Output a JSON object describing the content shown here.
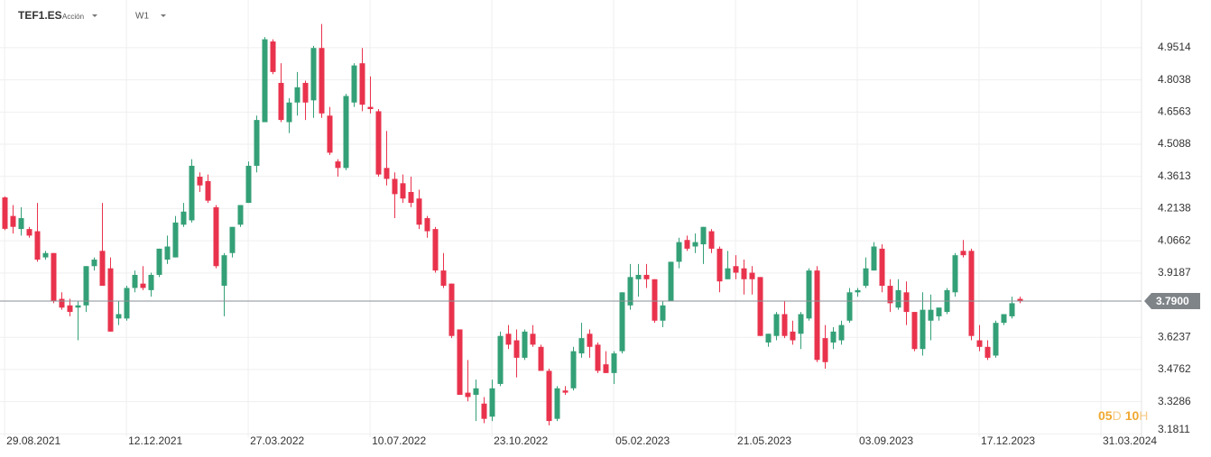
{
  "chart_data": {
    "type": "candlestick",
    "title": "TEF1.ES",
    "subtitle": "Acción",
    "timeframe": "W1",
    "up_color": "#34a077",
    "down_color": "#e9334d",
    "grid": true,
    "x": [
      "2021-08-29",
      "2021-09-05",
      "2021-09-12",
      "2021-09-19",
      "2021-09-26",
      "2021-10-03",
      "2021-10-10",
      "2021-10-17",
      "2021-10-24",
      "2021-10-31",
      "2021-11-07",
      "2021-11-14",
      "2021-11-21",
      "2021-11-28",
      "2021-12-05",
      "2021-12-12",
      "2021-12-19",
      "2021-12-26",
      "2022-01-02",
      "2022-01-09",
      "2022-01-16",
      "2022-01-23",
      "2022-01-30",
      "2022-02-06",
      "2022-02-13",
      "2022-02-20",
      "2022-02-27",
      "2022-03-06",
      "2022-03-13",
      "2022-03-20",
      "2022-03-27",
      "2022-04-03",
      "2022-04-10",
      "2022-04-17",
      "2022-04-24",
      "2022-05-01",
      "2022-05-08",
      "2022-05-15",
      "2022-05-22",
      "2022-05-29",
      "2022-06-05",
      "2022-06-12",
      "2022-06-19",
      "2022-06-26",
      "2022-07-03",
      "2022-07-10",
      "2022-07-17",
      "2022-07-24",
      "2022-07-31",
      "2022-08-07",
      "2022-08-14",
      "2022-08-21",
      "2022-08-28",
      "2022-09-04",
      "2022-09-11",
      "2022-09-18",
      "2022-09-25",
      "2022-10-02",
      "2022-10-09",
      "2022-10-16",
      "2022-10-23",
      "2022-10-30",
      "2022-11-06",
      "2022-11-13",
      "2022-11-20",
      "2022-11-27",
      "2022-12-04",
      "2022-12-11",
      "2022-12-18",
      "2022-12-25",
      "2023-01-01",
      "2023-01-08",
      "2023-01-15",
      "2023-01-22",
      "2023-01-29",
      "2023-02-05",
      "2023-02-12",
      "2023-02-19",
      "2023-02-26",
      "2023-03-05",
      "2023-03-12",
      "2023-03-19",
      "2023-03-26",
      "2023-04-02",
      "2023-04-09",
      "2023-04-16",
      "2023-04-23",
      "2023-04-30",
      "2023-05-07",
      "2023-05-14",
      "2023-05-21",
      "2023-05-28",
      "2023-06-04",
      "2023-06-11",
      "2023-06-18",
      "2023-06-25",
      "2023-07-02",
      "2023-07-09",
      "2023-07-16",
      "2023-07-23",
      "2023-07-30",
      "2023-08-06",
      "2023-08-13",
      "2023-08-20",
      "2023-08-27",
      "2023-09-03",
      "2023-09-10",
      "2023-09-17",
      "2023-09-24",
      "2023-10-01",
      "2023-10-08",
      "2023-10-15",
      "2023-10-22",
      "2023-10-29",
      "2023-11-05",
      "2023-11-12",
      "2023-11-19",
      "2023-11-26",
      "2023-12-03",
      "2023-12-10",
      "2023-12-17",
      "2023-12-24",
      "2023-12-31",
      "2024-01-07",
      "2024-01-14",
      "2024-01-21"
    ],
    "open": [
      4.265,
      4.18,
      4.12,
      4.12,
      4.11,
      3.99,
      4.01,
      3.8,
      3.77,
      3.76,
      3.77,
      3.95,
      4.02,
      3.94,
      3.71,
      3.71,
      3.85,
      3.87,
      3.84,
      3.91,
      3.98,
      3.99,
      4.14,
      4.16,
      4.36,
      4.34,
      4.22,
      3.86,
      4.01,
      4.14,
      4.24,
      4.41,
      4.61,
      4.98,
      4.79,
      4.61,
      4.7,
      4.79,
      4.71,
      4.95,
      4.64,
      4.43,
      4.4,
      4.7,
      4.88,
      4.68,
      4.66,
      4.4,
      4.35,
      4.33,
      4.29,
      4.26,
      4.17,
      4.12,
      3.93,
      3.87,
      3.66,
      3.37,
      3.36,
      3.32,
      3.26,
      3.41,
      3.64,
      3.61,
      3.53,
      3.64,
      3.58,
      3.47,
      3.25,
      3.38,
      3.39,
      3.55,
      3.64,
      3.59,
      3.5,
      3.46,
      3.56,
      3.77,
      3.89,
      3.91,
      3.89,
      3.7,
      3.79,
      3.97,
      4.07,
      4.04,
      4.05,
      4.11,
      4.03,
      3.89,
      3.95,
      3.94,
      3.92,
      3.9,
      3.6,
      3.63,
      3.73,
      3.65,
      3.64,
      3.71,
      3.93,
      3.62,
      3.6,
      3.61,
      3.7,
      3.83,
      3.86,
      3.93,
      4.03,
      3.86,
      3.76,
      3.83,
      3.74,
      3.57,
      3.7,
      3.72,
      3.74,
      3.83,
      4.02,
      4.02,
      3.61,
      3.58,
      3.54,
      3.69,
      3.72,
      3.8
    ],
    "high": [
      4.27,
      4.23,
      4.22,
      4.13,
      4.24,
      4.02,
      4.01,
      3.83,
      3.8,
      3.79,
      3.95,
      3.99,
      4.24,
      3.99,
      3.79,
      3.86,
      3.93,
      3.95,
      3.92,
      4.03,
      4.09,
      4.18,
      4.24,
      4.44,
      4.38,
      4.37,
      4.23,
      4.01,
      4.13,
      4.23,
      4.43,
      4.64,
      5.0,
      4.99,
      4.88,
      4.72,
      4.84,
      4.8,
      4.96,
      5.06,
      4.68,
      4.44,
      4.74,
      4.88,
      4.95,
      4.82,
      4.67,
      4.57,
      4.38,
      4.37,
      4.36,
      4.3,
      4.18,
      4.13,
      4.01,
      3.87,
      3.66,
      3.52,
      3.43,
      3.35,
      3.43,
      3.65,
      3.68,
      3.66,
      3.66,
      3.68,
      3.59,
      3.48,
      3.4,
      3.4,
      3.58,
      3.69,
      3.66,
      3.6,
      3.56,
      3.56,
      3.83,
      3.96,
      3.96,
      3.96,
      3.89,
      3.79,
      3.97,
      4.08,
      4.09,
      4.1,
      4.13,
      4.12,
      4.04,
      4.02,
      4.0,
      3.98,
      3.95,
      3.9,
      3.64,
      3.74,
      3.79,
      3.7,
      3.74,
      3.94,
      3.95,
      3.68,
      3.67,
      3.7,
      3.85,
      3.85,
      3.99,
      4.06,
      4.05,
      3.89,
      3.89,
      3.88,
      3.74,
      3.83,
      3.82,
      3.76,
      3.85,
      4.01,
      4.07,
      4.03,
      3.68,
      3.61,
      3.7,
      3.73,
      3.81,
      3.81
    ],
    "low": [
      4.115,
      4.1,
      4.09,
      4.08,
      3.97,
      3.98,
      3.78,
      3.75,
      3.72,
      3.61,
      3.74,
      3.93,
      3.86,
      3.65,
      3.68,
      3.7,
      3.83,
      3.84,
      3.81,
      3.9,
      3.96,
      3.99,
      4.13,
      4.15,
      4.29,
      4.24,
      3.94,
      3.72,
      3.99,
      4.13,
      4.24,
      4.38,
      4.61,
      4.83,
      4.61,
      4.56,
      4.64,
      4.62,
      4.63,
      4.63,
      4.46,
      4.36,
      4.39,
      4.68,
      4.66,
      4.65,
      4.36,
      4.32,
      4.17,
      4.24,
      4.22,
      4.12,
      4.08,
      3.92,
      3.85,
      3.62,
      3.36,
      3.33,
      3.24,
      3.23,
      3.24,
      3.4,
      3.57,
      3.44,
      3.52,
      3.58,
      3.47,
      3.22,
      3.24,
      3.36,
      3.38,
      3.53,
      3.53,
      3.46,
      3.46,
      3.41,
      3.55,
      3.75,
      3.81,
      3.85,
      3.69,
      3.67,
      3.79,
      3.94,
      4.02,
      4.01,
      3.96,
      4.01,
      3.83,
      3.89,
      3.89,
      3.82,
      3.82,
      3.63,
      3.58,
      3.61,
      3.62,
      3.59,
      3.57,
      3.7,
      3.51,
      3.48,
      3.57,
      3.59,
      3.69,
      3.81,
      3.85,
      3.93,
      3.83,
      3.74,
      3.75,
      3.68,
      3.56,
      3.54,
      3.61,
      3.7,
      3.73,
      3.81,
      3.99,
      3.61,
      3.56,
      3.52,
      3.53,
      3.68,
      3.71,
      3.78
    ],
    "close": [
      4.121,
      4.13,
      4.17,
      4.09,
      3.98,
      4.01,
      3.79,
      3.76,
      3.74,
      3.77,
      3.95,
      3.98,
      3.86,
      3.65,
      3.73,
      3.85,
      3.91,
      3.85,
      3.91,
      4.03,
      4.04,
      4.15,
      4.2,
      4.41,
      4.32,
      4.25,
      3.95,
      4.0,
      4.13,
      4.23,
      4.41,
      4.62,
      4.99,
      4.84,
      4.62,
      4.7,
      4.77,
      4.7,
      4.95,
      4.65,
      4.47,
      4.4,
      4.73,
      4.87,
      4.69,
      4.67,
      4.37,
      4.35,
      4.28,
      4.26,
      4.24,
      4.14,
      4.11,
      3.93,
      3.86,
      3.63,
      3.36,
      3.35,
      3.39,
      3.25,
      3.39,
      3.63,
      3.59,
      3.53,
      3.65,
      3.59,
      3.47,
      3.24,
      3.39,
      3.37,
      3.56,
      3.62,
      3.58,
      3.47,
      3.46,
      3.55,
      3.83,
      3.9,
      3.91,
      3.89,
      3.7,
      3.77,
      3.97,
      4.06,
      4.03,
      4.06,
      4.13,
      4.03,
      3.88,
      3.94,
      3.92,
      3.89,
      3.89,
      3.63,
      3.64,
      3.73,
      3.63,
      3.61,
      3.73,
      3.93,
      3.52,
      3.51,
      3.65,
      3.68,
      3.83,
      3.84,
      3.94,
      4.04,
      3.86,
      3.78,
      3.84,
      3.74,
      3.57,
      3.75,
      3.75,
      3.76,
      3.84,
      4.0,
      4.0,
      3.63,
      3.58,
      3.53,
      3.69,
      3.73,
      3.78,
      3.79
    ],
    "xlim": [
      "2021-08-25",
      "2024-05-05"
    ],
    "xticks": [
      {
        "value": "2021-08-29",
        "label": "29.08.2021"
      },
      {
        "value": "2021-12-12",
        "label": "12.12.2021"
      },
      {
        "value": "2022-03-27",
        "label": "27.03.2022"
      },
      {
        "value": "2022-07-10",
        "label": "10.07.2022"
      },
      {
        "value": "2022-10-23",
        "label": "23.10.2022"
      },
      {
        "value": "2023-02-05",
        "label": "05.02.2023"
      },
      {
        "value": "2023-05-21",
        "label": "21.05.2023"
      },
      {
        "value": "2023-09-03",
        "label": "03.09.2023"
      },
      {
        "value": "2023-12-17",
        "label": "17.12.2023"
      },
      {
        "value": "2024-03-31",
        "label": "31.03.2024"
      }
    ],
    "ylim": [
      3.166,
      5.17
    ],
    "yticks": [
      4.9514,
      4.8038,
      4.6563,
      4.5088,
      4.3613,
      4.2138,
      4.0662,
      3.9187,
      3.6237,
      3.4762,
      3.3286,
      3.1811
    ],
    "current_price": {
      "value": 3.79,
      "label": "3.7900"
    },
    "countdown": {
      "days": "05",
      "day_unit": "D",
      "hours": "10",
      "hour_unit": "H"
    }
  }
}
